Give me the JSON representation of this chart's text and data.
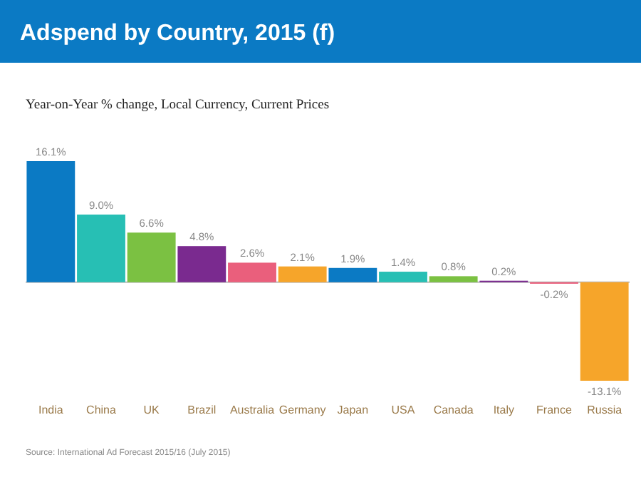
{
  "chart_data": {
    "type": "bar",
    "title": "Adspend by Country, 2015 (f)",
    "subtitle": "Year-on-Year % change, Local Currency, Current Prices",
    "categories": [
      "India",
      "China",
      "UK",
      "Brazil",
      "Australia",
      "Germany",
      "Japan",
      "USA",
      "Canada",
      "Italy",
      "France",
      "Russia"
    ],
    "values": [
      16.1,
      9.0,
      6.6,
      4.8,
      2.6,
      2.1,
      1.9,
      1.4,
      0.8,
      0.2,
      -0.2,
      -13.1
    ],
    "value_labels": [
      "16.1%",
      "9.0%",
      "6.6%",
      "4.8%",
      "2.6%",
      "2.1%",
      "1.9%",
      "1.4%",
      "0.8%",
      "0.2%",
      "-0.2%",
      "-13.1%"
    ],
    "colors": [
      "#0b7ac4",
      "#27bfb4",
      "#7bc142",
      "#7a2a8f",
      "#ea5f7c",
      "#f6a52a",
      "#0b7ac4",
      "#27bfb4",
      "#7bc142",
      "#7a2a8f",
      "#ea5f7c",
      "#f6a52a"
    ],
    "relative": false,
    "annotations": [
      "Source: International Ad Forecast 2015/16 (July 2015)"
    ]
  }
}
